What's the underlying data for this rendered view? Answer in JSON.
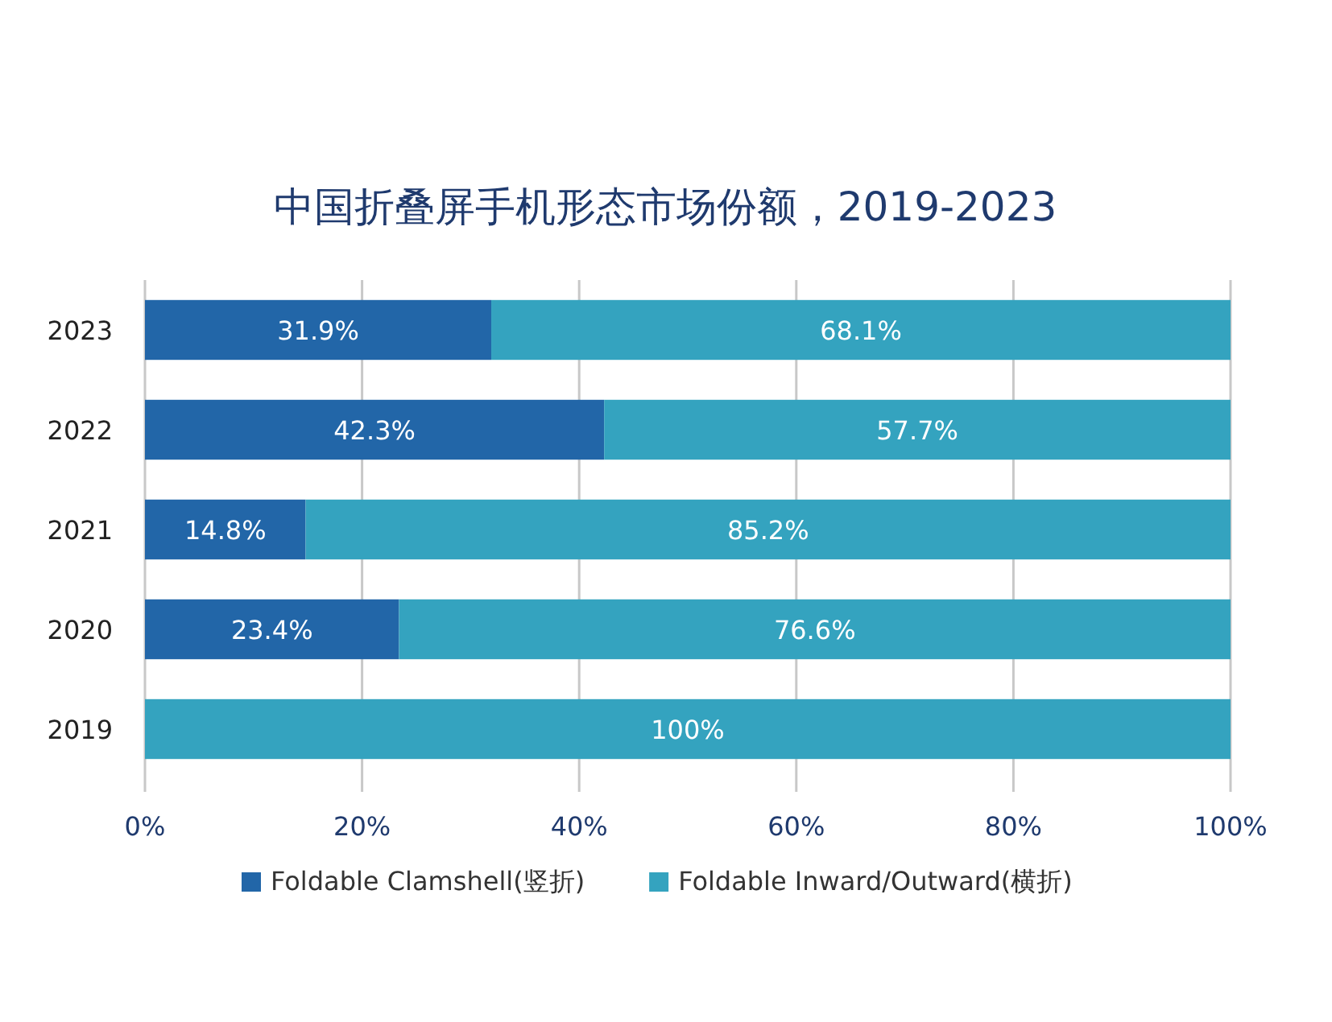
{
  "chart_data": {
    "type": "bar",
    "orientation": "horizontal",
    "stacked": true,
    "title": "中国折叠屏手机形态市场份额，2019-2023",
    "categories": [
      "2023",
      "2022",
      "2021",
      "2020",
      "2019"
    ],
    "series": [
      {
        "name": "Foldable Clamshell(竖折)",
        "color": "#2266a8",
        "values": [
          31.9,
          42.3,
          14.8,
          23.4,
          0
        ],
        "value_labels": [
          "31.9%",
          "42.3%",
          "14.8%",
          "23.4%",
          null
        ]
      },
      {
        "name": "Foldable Inward/Outward(横折)",
        "color": "#34a3bf",
        "values": [
          68.1,
          57.7,
          85.2,
          76.6,
          100
        ],
        "value_labels": [
          "68.1%",
          "57.7%",
          "85.2%",
          "76.6%",
          "100%"
        ]
      }
    ],
    "xlim": [
      0,
      100
    ],
    "xticks": [
      {
        "value": 0,
        "label": "0%"
      },
      {
        "value": 20,
        "label": "20%"
      },
      {
        "value": 40,
        "label": "40%"
      },
      {
        "value": 60,
        "label": "60%"
      },
      {
        "value": 80,
        "label": "80%"
      },
      {
        "value": 100,
        "label": "100%"
      }
    ],
    "grid": "x",
    "legend": "bottom"
  }
}
